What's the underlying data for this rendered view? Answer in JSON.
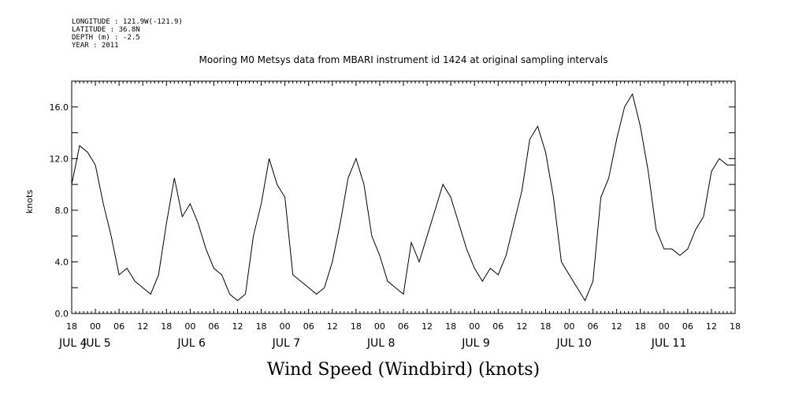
{
  "header": {
    "longitude": "LONGITUDE : 121.9W(-121.9)",
    "latitude": "LATITUDE : 36.8N",
    "depth": "DEPTH (m) : -2.5",
    "year": "YEAR : 2011"
  },
  "chart_data": {
    "type": "line",
    "title": "Mooring M0 Metsys data from MBARI instrument id 1424 at original sampling intervals",
    "xlabel": "Wind Speed (Windbird) (knots)",
    "ylabel": "knots",
    "ylim": [
      0,
      18
    ],
    "xlim": [
      "2011-07-04T18:00",
      "2011-07-11T18:00"
    ],
    "y_ticks": [
      0.0,
      4.0,
      8.0,
      12.0,
      16.0
    ],
    "y_tick_labels": [
      "0.0",
      "4.0",
      "8.0",
      "12.0",
      "16.0"
    ],
    "x_tick_labels": [
      "18",
      "00",
      "06",
      "12",
      "18",
      "00",
      "06",
      "12",
      "18",
      "00",
      "06",
      "12",
      "18",
      "00",
      "06",
      "12",
      "18",
      "00",
      "06",
      "12",
      "18",
      "00",
      "06",
      "12",
      "18",
      "00",
      "06",
      "12",
      "18"
    ],
    "x_day_labels": [
      {
        "label": "JUL 4",
        "x": "2011-07-04T18:00"
      },
      {
        "label": "JUL 5",
        "x": "2011-07-05T00:00"
      },
      {
        "label": "JUL 6",
        "x": "2011-07-06T00:00"
      },
      {
        "label": "JUL 7",
        "x": "2011-07-07T00:00"
      },
      {
        "label": "JUL 8",
        "x": "2011-07-08T00:00"
      },
      {
        "label": "JUL 9",
        "x": "2011-07-09T00:00"
      },
      {
        "label": "JUL 10",
        "x": "2011-07-10T00:00"
      },
      {
        "label": "JUL 11",
        "x": "2011-07-11T00:00"
      }
    ],
    "grid": false,
    "series": [
      {
        "x": [
          "2011-07-04T18:00",
          "2011-07-04T20:00",
          "2011-07-04T22:00",
          "2011-07-05T00:00",
          "2011-07-05T02:00",
          "2011-07-05T04:00",
          "2011-07-05T06:00",
          "2011-07-05T08:00",
          "2011-07-05T10:00",
          "2011-07-05T12:00",
          "2011-07-05T14:00",
          "2011-07-05T16:00",
          "2011-07-05T18:00",
          "2011-07-05T20:00",
          "2011-07-05T22:00",
          "2011-07-06T00:00",
          "2011-07-06T02:00",
          "2011-07-06T04:00",
          "2011-07-06T06:00",
          "2011-07-06T08:00",
          "2011-07-06T10:00",
          "2011-07-06T12:00",
          "2011-07-06T14:00",
          "2011-07-06T16:00",
          "2011-07-06T18:00",
          "2011-07-06T20:00",
          "2011-07-06T22:00",
          "2011-07-07T00:00",
          "2011-07-07T02:00",
          "2011-07-07T04:00",
          "2011-07-07T06:00",
          "2011-07-07T08:00",
          "2011-07-07T10:00",
          "2011-07-07T12:00",
          "2011-07-07T14:00",
          "2011-07-07T16:00",
          "2011-07-07T18:00",
          "2011-07-07T20:00",
          "2011-07-07T22:00",
          "2011-07-08T00:00",
          "2011-07-08T02:00",
          "2011-07-08T04:00",
          "2011-07-08T06:00",
          "2011-07-08T08:00",
          "2011-07-08T10:00",
          "2011-07-08T12:00",
          "2011-07-08T14:00",
          "2011-07-08T16:00",
          "2011-07-08T18:00",
          "2011-07-08T20:00",
          "2011-07-08T22:00",
          "2011-07-09T00:00",
          "2011-07-09T02:00",
          "2011-07-09T04:00",
          "2011-07-09T06:00",
          "2011-07-09T08:00",
          "2011-07-09T10:00",
          "2011-07-09T12:00",
          "2011-07-09T14:00",
          "2011-07-09T16:00",
          "2011-07-09T18:00",
          "2011-07-09T20:00",
          "2011-07-09T22:00",
          "2011-07-10T00:00",
          "2011-07-10T02:00",
          "2011-07-10T04:00",
          "2011-07-10T06:00",
          "2011-07-10T08:00",
          "2011-07-10T10:00",
          "2011-07-10T12:00",
          "2011-07-10T14:00",
          "2011-07-10T16:00",
          "2011-07-10T18:00",
          "2011-07-10T20:00",
          "2011-07-10T22:00",
          "2011-07-11T00:00",
          "2011-07-11T02:00",
          "2011-07-11T04:00",
          "2011-07-11T06:00",
          "2011-07-11T08:00",
          "2011-07-11T10:00",
          "2011-07-11T12:00",
          "2011-07-11T14:00",
          "2011-07-11T16:00",
          "2011-07-11T18:00"
        ],
        "values": [
          10.0,
          13.0,
          12.5,
          11.5,
          8.5,
          6.0,
          3.0,
          3.5,
          2.5,
          2.0,
          1.5,
          3.0,
          7.0,
          10.5,
          7.5,
          8.5,
          7.0,
          5.0,
          3.5,
          3.0,
          1.5,
          1.0,
          1.5,
          6.0,
          8.5,
          12.0,
          10.0,
          9.0,
          3.0,
          2.5,
          2.0,
          1.5,
          2.0,
          4.0,
          7.0,
          10.5,
          12.0,
          10.0,
          6.0,
          4.5,
          2.5,
          2.0,
          1.5,
          5.5,
          4.0,
          6.0,
          8.0,
          10.0,
          9.0,
          7.0,
          5.0,
          3.5,
          2.5,
          3.5,
          3.0,
          4.5,
          7.0,
          9.5,
          13.5,
          14.5,
          12.5,
          9.0,
          4.0,
          3.0,
          2.0,
          1.0,
          2.5,
          9.0,
          10.5,
          13.5,
          16.0,
          17.0,
          14.5,
          11.0,
          6.5,
          5.0,
          5.0,
          4.5,
          5.0,
          6.5,
          7.5,
          11.0,
          12.0,
          11.5,
          11.5
        ]
      }
    ]
  }
}
